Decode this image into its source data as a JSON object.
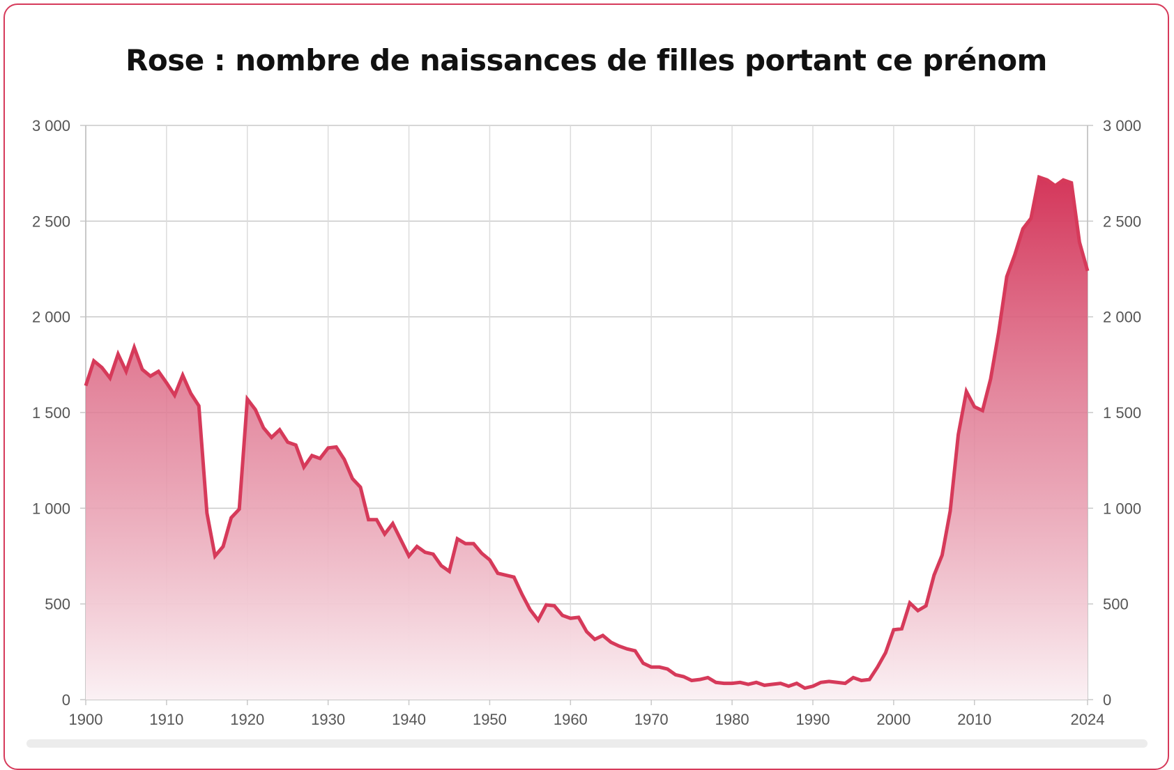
{
  "chart_data": {
    "type": "area",
    "title": "Rose : nombre de naissances de filles portant ce prénom",
    "xlabel": "",
    "ylabel": "",
    "xlim": [
      1900,
      2024
    ],
    "ylim": [
      0,
      3000
    ],
    "x_ticks": [
      "1900",
      "1910",
      "1920",
      "1930",
      "1940",
      "1950",
      "1960",
      "1970",
      "1980",
      "1990",
      "2000",
      "2010",
      "2024"
    ],
    "y_ticks": [
      "0",
      "500",
      "1 000",
      "1 500",
      "2 000",
      "2 500",
      "3 000"
    ],
    "grid": true,
    "colors": {
      "line": "#d63a5a",
      "fill_top": "#d4365a",
      "fill_bottom": "#fbf1f4"
    },
    "series": [
      {
        "x": [
          1900,
          1901,
          1902,
          1903,
          1904,
          1905,
          1906,
          1907,
          1908,
          1909,
          1910,
          1911,
          1912,
          1913,
          1914,
          1915,
          1916,
          1917,
          1918,
          1919,
          1920,
          1921,
          1922,
          1923,
          1924,
          1925,
          1926,
          1927,
          1928,
          1929,
          1930,
          1931,
          1932,
          1933,
          1934,
          1935,
          1936,
          1937,
          1938,
          1939,
          1940,
          1941,
          1942,
          1943,
          1944,
          1945,
          1946,
          1947,
          1948,
          1949,
          1950,
          1951,
          1952,
          1953,
          1954,
          1955,
          1956,
          1957,
          1958,
          1959,
          1960,
          1961,
          1962,
          1963,
          1964,
          1965,
          1966,
          1967,
          1968,
          1969,
          1970,
          1971,
          1972,
          1973,
          1974,
          1975,
          1976,
          1977,
          1978,
          1979,
          1980,
          1981,
          1982,
          1983,
          1984,
          1985,
          1986,
          1987,
          1988,
          1989,
          1990,
          1991,
          1992,
          1993,
          1994,
          1995,
          1996,
          1997,
          1998,
          1999,
          2000,
          2001,
          2002,
          2003,
          2004,
          2005,
          2006,
          2007,
          2008,
          2009,
          2010,
          2011,
          2012,
          2013,
          2014,
          2015,
          2016,
          2017,
          2018,
          2019,
          2020,
          2021,
          2022,
          2023,
          2024
        ],
        "values": [
          1640,
          1770,
          1735,
          1680,
          1805,
          1715,
          1840,
          1725,
          1690,
          1715,
          1655,
          1590,
          1695,
          1600,
          1535,
          975,
          750,
          800,
          950,
          995,
          1570,
          1515,
          1420,
          1370,
          1410,
          1345,
          1330,
          1215,
          1275,
          1260,
          1315,
          1320,
          1255,
          1155,
          1110,
          940,
          940,
          865,
          920,
          835,
          750,
          800,
          770,
          760,
          700,
          670,
          840,
          815,
          815,
          765,
          730,
          660,
          650,
          640,
          550,
          470,
          415,
          495,
          490,
          440,
          425,
          430,
          355,
          315,
          335,
          300,
          280,
          265,
          255,
          190,
          170,
          170,
          160,
          130,
          120,
          100,
          105,
          115,
          90,
          85,
          85,
          90,
          80,
          90,
          75,
          80,
          85,
          70,
          85,
          60,
          70,
          90,
          95,
          90,
          85,
          115,
          100,
          105,
          170,
          245,
          365,
          370,
          505,
          465,
          490,
          650,
          755,
          985,
          1385,
          1610,
          1530,
          1510,
          1675,
          1920,
          2210,
          2325,
          2460,
          2515,
          2730,
          2715,
          2685,
          2715,
          2700,
          2390,
          2240
        ]
      }
    ]
  }
}
